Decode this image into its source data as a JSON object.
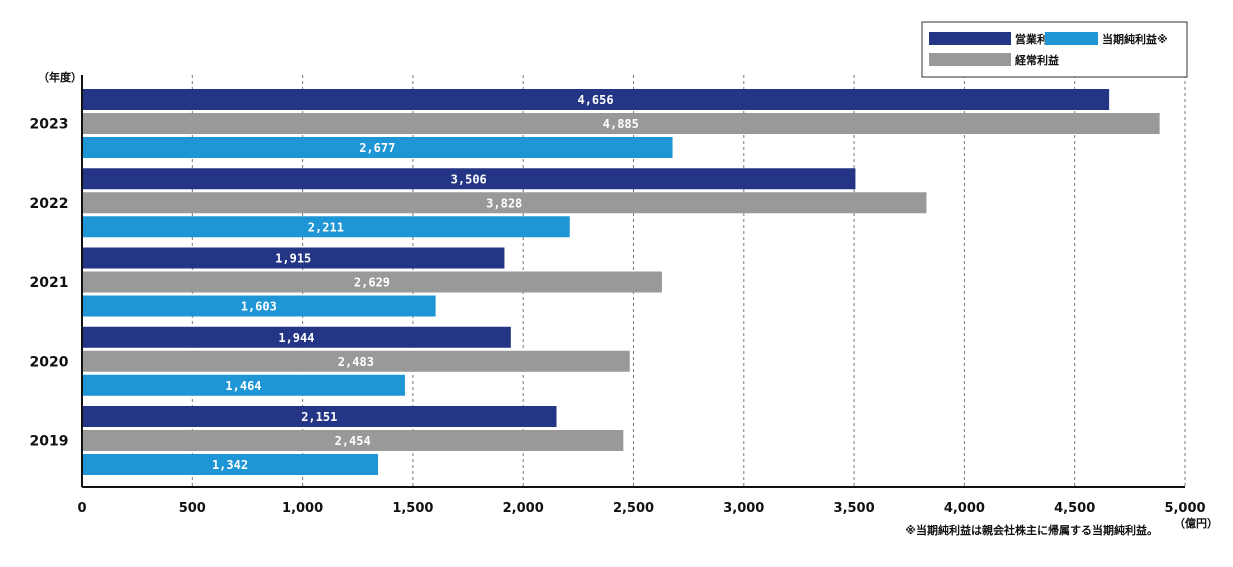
{
  "chart_data": {
    "type": "bar",
    "orientation": "horizontal",
    "categories": [
      "2023",
      "2022",
      "2021",
      "2020",
      "2019"
    ],
    "series": [
      {
        "name": "営業利益",
        "color": "#243585",
        "values": [
          4656,
          3506,
          1915,
          1944,
          2151
        ],
        "labels": [
          "4,656",
          "3,506",
          "1,915",
          "1,944",
          "2,151"
        ]
      },
      {
        "name": "経常利益",
        "color": "#999999",
        "values": [
          4885,
          3828,
          2629,
          2483,
          2454
        ],
        "labels": [
          "4,885",
          "3,828",
          "2,629",
          "2,483",
          "2,454"
        ]
      },
      {
        "name": "当期純利益※",
        "color": "#1e95d4",
        "values": [
          2677,
          2211,
          1603,
          1464,
          1342
        ],
        "labels": [
          "2,677",
          "2,211",
          "1,603",
          "1,464",
          "1,342"
        ]
      }
    ],
    "xlim": [
      0,
      5000
    ],
    "x_ticks": [
      0,
      500,
      1000,
      1500,
      2000,
      2500,
      3000,
      3500,
      4000,
      4500,
      5000
    ],
    "x_tick_labels": [
      "0",
      "500",
      "1,000",
      "1,500",
      "2,000",
      "2,500",
      "3,000",
      "3,500",
      "4,000",
      "4,500",
      "5,000"
    ],
    "y_unit": "（年度）",
    "x_unit": "（億円）",
    "footnote": "※当期純利益は親会社株主に帰属する当期純利益。",
    "grid": "vertical dashed",
    "legend_position": "top-right"
  }
}
